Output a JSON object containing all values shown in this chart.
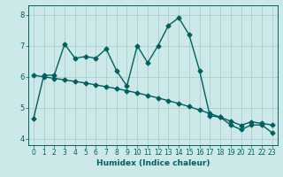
{
  "xlabel": "Humidex (Indice chaleur)",
  "bg_color": "#cce8e8",
  "grid_color": "#aad0d0",
  "line_color": "#006060",
  "xlim": [
    -0.5,
    23.5
  ],
  "ylim": [
    3.8,
    8.3
  ],
  "yticks": [
    4,
    5,
    6,
    7,
    8
  ],
  "xticks": [
    0,
    1,
    2,
    3,
    4,
    5,
    6,
    7,
    8,
    9,
    10,
    11,
    12,
    13,
    14,
    15,
    16,
    17,
    18,
    19,
    20,
    21,
    22,
    23
  ],
  "series1_x": [
    0,
    1,
    2,
    3,
    4,
    5,
    6,
    7,
    8,
    9,
    10,
    11,
    12,
    13,
    14,
    15,
    16,
    17,
    18,
    19,
    20,
    21,
    22,
    23
  ],
  "series1_y": [
    4.65,
    6.05,
    6.05,
    7.05,
    6.6,
    6.65,
    6.6,
    6.9,
    6.2,
    5.7,
    7.0,
    6.45,
    7.0,
    7.65,
    7.9,
    7.35,
    6.2,
    4.75,
    4.7,
    4.45,
    4.3,
    4.45,
    4.45,
    4.2
  ],
  "series2_x": [
    0,
    1,
    2,
    3,
    4,
    5,
    6,
    7,
    8,
    9,
    10,
    11,
    12,
    13,
    14,
    15,
    16,
    17,
    18,
    19,
    20,
    21,
    22,
    23
  ],
  "series2_y": [
    6.05,
    6.0,
    5.95,
    5.9,
    5.85,
    5.8,
    5.74,
    5.68,
    5.62,
    5.55,
    5.48,
    5.4,
    5.32,
    5.23,
    5.14,
    5.04,
    4.93,
    4.82,
    4.7,
    4.57,
    4.44,
    4.55,
    4.5,
    4.45
  ],
  "marker": "D",
  "marker_size": 2.5,
  "line_width": 1.0,
  "xlabel_fontsize": 6.5,
  "tick_fontsize": 5.5
}
